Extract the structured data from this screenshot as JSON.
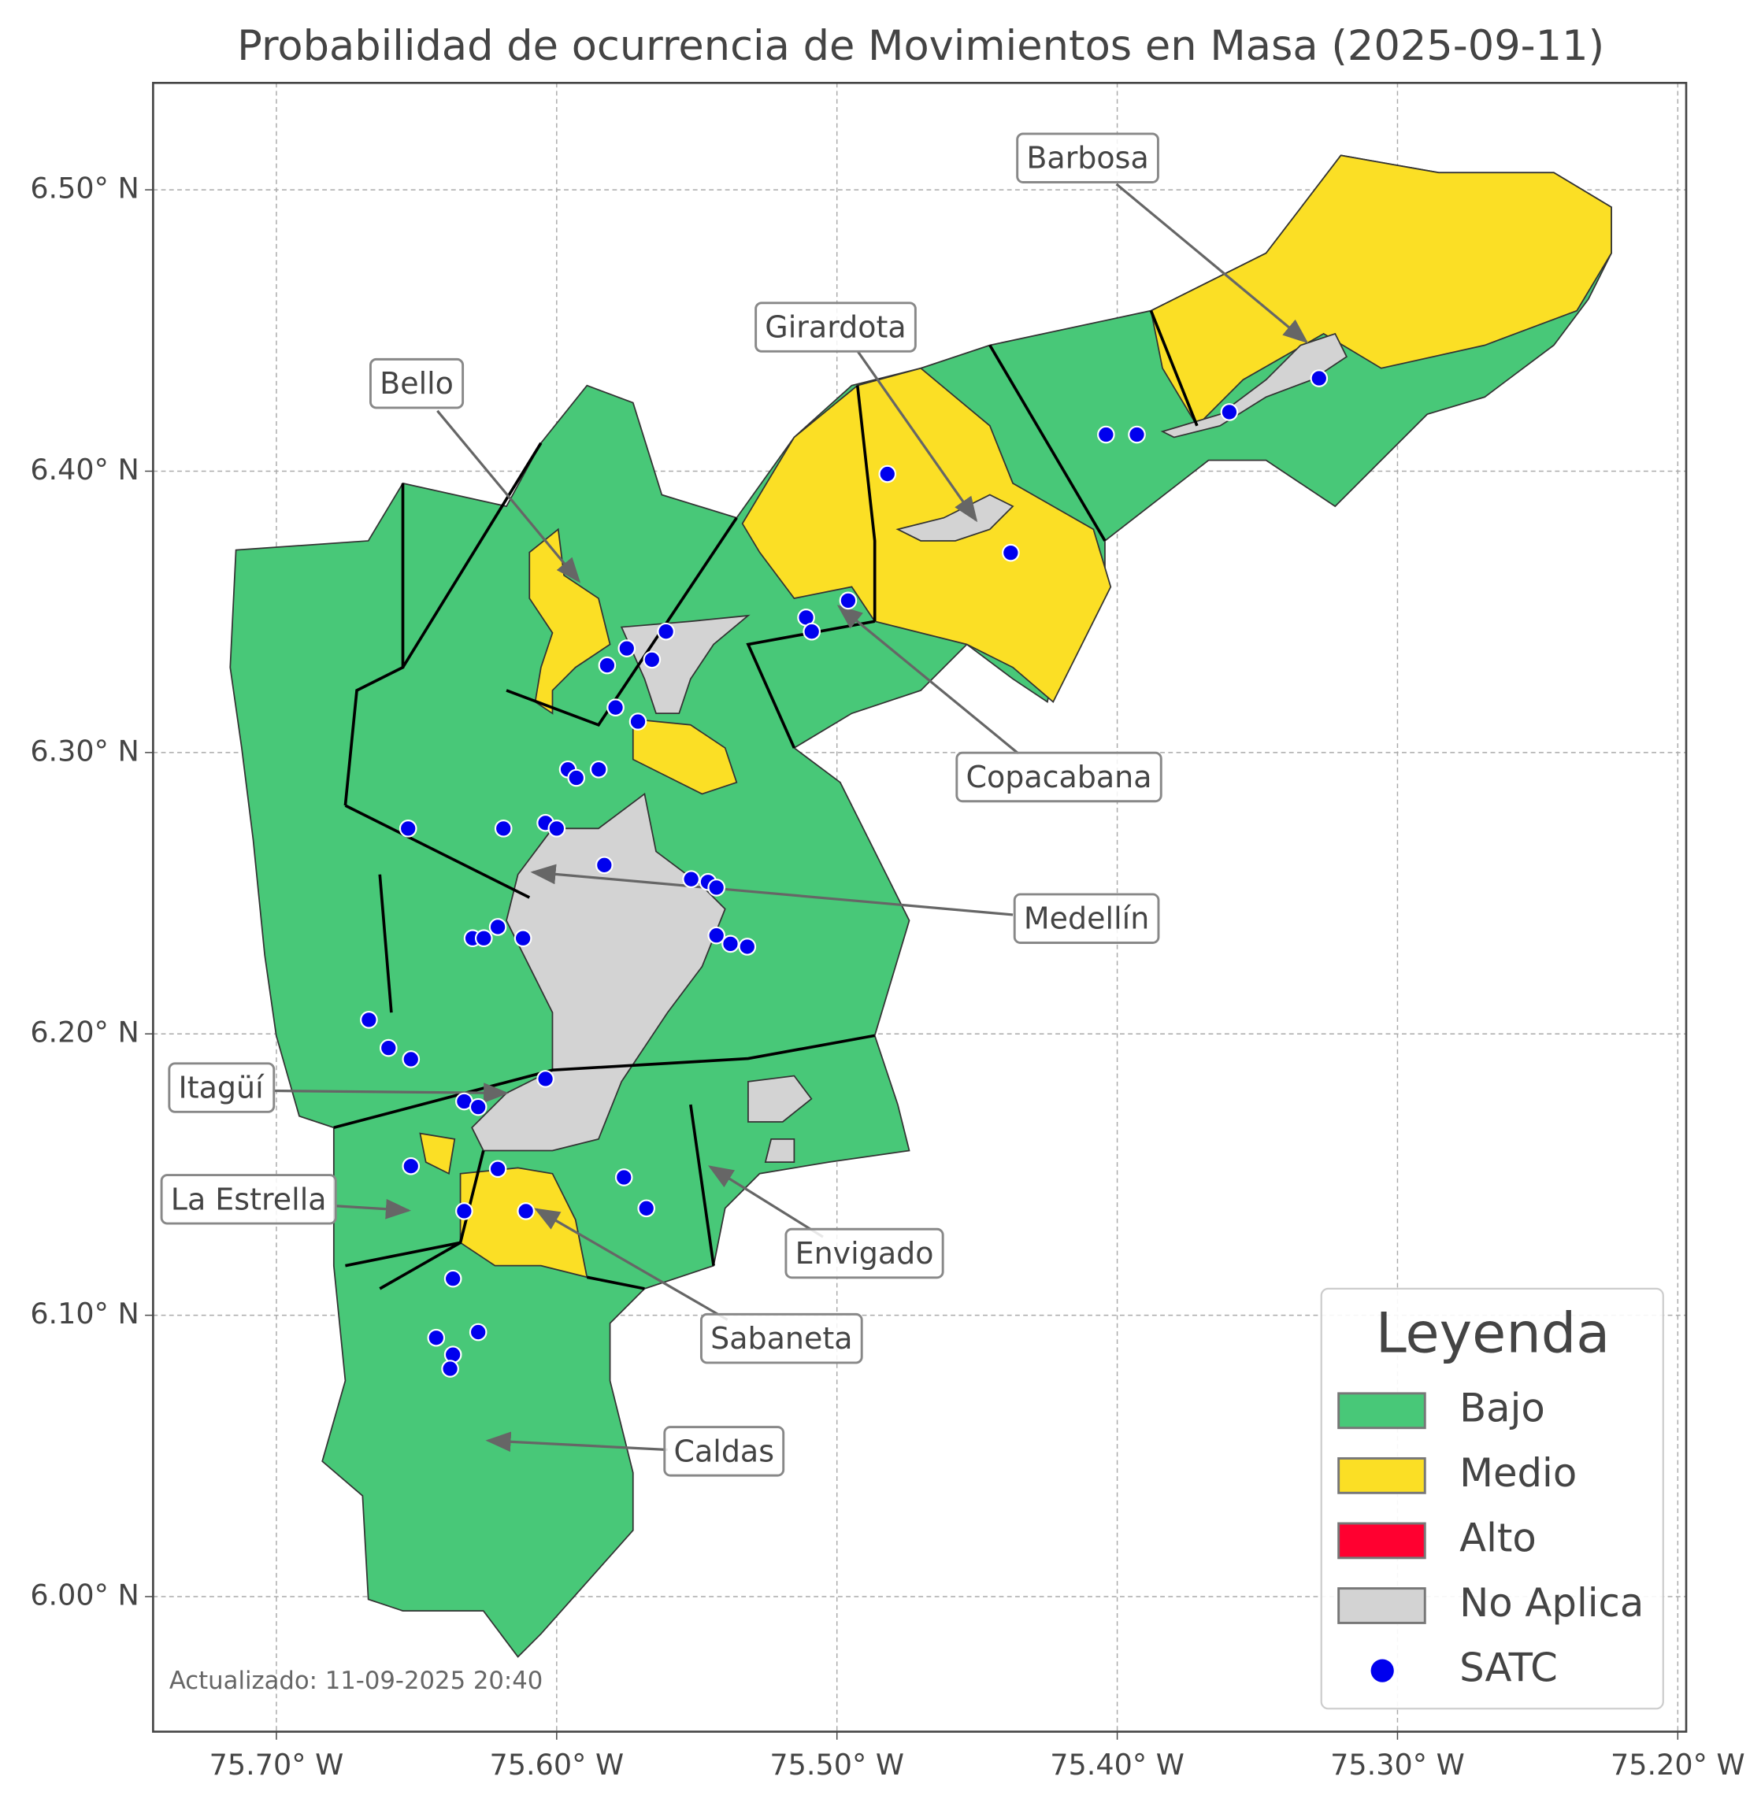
{
  "map": {
    "title": "Probabilidad de ocurrencia de Movimientos en Masa (2025-09-11)",
    "xlim": [
      -75.744,
      -75.197
    ],
    "ylim": [
      5.952,
      6.538
    ],
    "xticks": [
      {
        "value": -75.7,
        "label": "75.70° W"
      },
      {
        "value": -75.6,
        "label": "75.60° W"
      },
      {
        "value": -75.5,
        "label": "75.50° W"
      },
      {
        "value": -75.4,
        "label": "75.40° W"
      },
      {
        "value": -75.3,
        "label": "75.30° W"
      },
      {
        "value": -75.2,
        "label": "75.20° W"
      }
    ],
    "yticks": [
      {
        "value": 6.0,
        "label": "6.00° N"
      },
      {
        "value": 6.1,
        "label": "6.10° N"
      },
      {
        "value": 6.2,
        "label": "6.20° N"
      },
      {
        "value": 6.3,
        "label": "6.30° N"
      },
      {
        "value": 6.4,
        "label": "6.40° N"
      },
      {
        "value": 6.5,
        "label": "6.50° N"
      }
    ],
    "grid": true,
    "annotations": [
      "Barbosa",
      "Girardota",
      "Bello",
      "Copacabana",
      "Medellín",
      "Itagüí",
      "La Estrella",
      "Envigado",
      "Sabaneta",
      "Caldas"
    ],
    "legend": {
      "title": "Leyenda",
      "items": [
        {
          "name": "Bajo",
          "color": "#48c878"
        },
        {
          "name": "Medio",
          "color": "#fbdf25"
        },
        {
          "name": "Alto",
          "color": "#ff0030"
        },
        {
          "name": "No Aplica",
          "color": "#d3d3d3"
        }
      ]
    },
    "points": {
      "name": "SATC",
      "color": "#0000ee",
      "lon": [
        -75.328,
        -75.36,
        -75.393,
        -75.404,
        -75.482,
        -75.438,
        -75.496,
        -75.511,
        -75.509,
        -75.561,
        -75.575,
        -75.566,
        -75.582,
        -75.579,
        -75.571,
        -75.596,
        -75.593,
        -75.585,
        -75.653,
        -75.619,
        -75.604,
        -75.6,
        -75.583,
        -75.552,
        -75.546,
        -75.543,
        -75.543,
        -75.538,
        -75.532,
        -75.621,
        -75.63,
        -75.626,
        -75.612,
        -75.667,
        -75.66,
        -75.652,
        -75.604,
        -75.633,
        -75.628,
        -75.652,
        -75.621,
        -75.576,
        -75.568,
        -75.633,
        -75.611,
        -75.637,
        -75.643,
        -75.628,
        -75.637,
        -75.638
      ],
      "lat": [
        6.433,
        6.421,
        6.413,
        6.413,
        6.399,
        6.371,
        6.354,
        6.348,
        6.343,
        6.343,
        6.337,
        6.333,
        6.331,
        6.316,
        6.311,
        6.294,
        6.291,
        6.294,
        6.273,
        6.273,
        6.275,
        6.273,
        6.26,
        6.255,
        6.254,
        6.252,
        6.235,
        6.232,
        6.231,
        6.238,
        6.234,
        6.234,
        6.234,
        6.205,
        6.195,
        6.191,
        6.184,
        6.176,
        6.174,
        6.153,
        6.152,
        6.149,
        6.138,
        6.137,
        6.137,
        6.113,
        6.092,
        6.094,
        6.086,
        6.081
      ]
    },
    "footnote": "Actualizado: 11-09-2025 20:40"
  }
}
